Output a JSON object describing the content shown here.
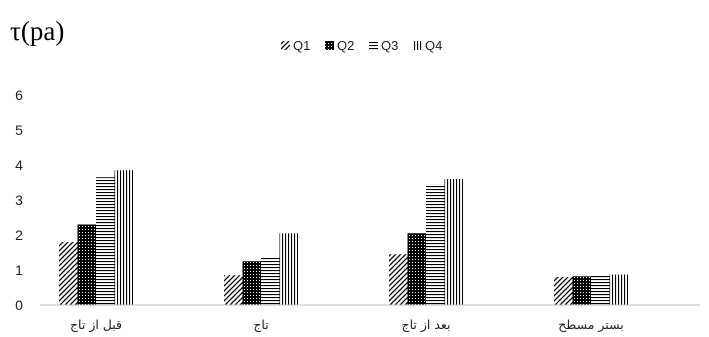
{
  "chart_data": {
    "type": "bar",
    "title": "τ(pa)",
    "categories": [
      "قبل از تاج",
      "تاج",
      "بعد از تاج",
      "بستر مسطح"
    ],
    "series": [
      {
        "name": "Q1",
        "pattern": "diagonal",
        "values": [
          1.8,
          0.85,
          1.45,
          0.8
        ]
      },
      {
        "name": "Q2",
        "pattern": "dots",
        "values": [
          2.3,
          1.25,
          2.05,
          0.82
        ]
      },
      {
        "name": "Q3",
        "pattern": "horizontal",
        "values": [
          3.65,
          1.35,
          3.45,
          0.85
        ]
      },
      {
        "name": "Q4",
        "pattern": "vertical",
        "values": [
          3.85,
          2.05,
          3.6,
          0.87
        ]
      }
    ],
    "ylim": [
      0,
      6
    ],
    "yticks": [
      0,
      1,
      2,
      3,
      4,
      5,
      6
    ],
    "grid": false,
    "legend_position": "top-center"
  }
}
